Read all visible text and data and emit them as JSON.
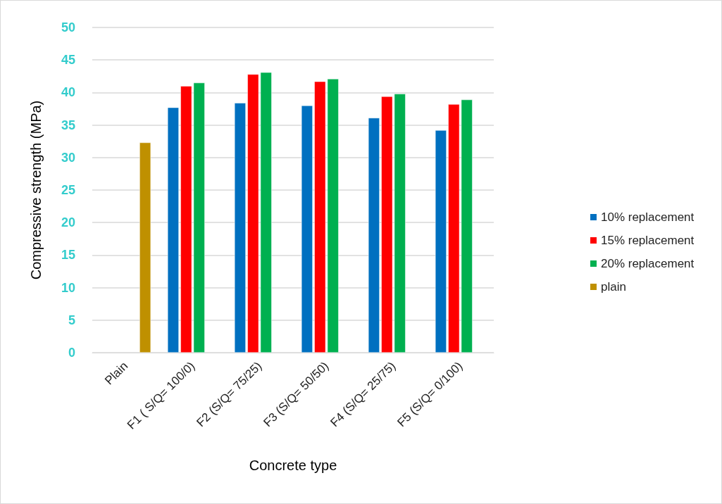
{
  "chart_data": {
    "type": "bar",
    "xlabel": "Concrete type",
    "ylabel": "Compressive strength (MPa)",
    "categories": [
      "Plain",
      "F1 ( S/Q= 100/0)",
      "F2 (S/Q= 75/25)",
      "F3 (S/Q= 50/50)",
      "F4 (S/Q= 25/75)",
      "F5 (S/Q= 0/100)"
    ],
    "series": [
      {
        "name": "10% replacement",
        "color": "#0070c0",
        "values": [
          null,
          37.7,
          38.4,
          38.0,
          36.1,
          34.2
        ]
      },
      {
        "name": "15% replacement",
        "color": "#ff0000",
        "values": [
          null,
          41.0,
          42.8,
          41.7,
          39.4,
          38.2
        ]
      },
      {
        "name": "20% replacement",
        "color": "#00b050",
        "values": [
          null,
          41.5,
          43.1,
          42.1,
          39.8,
          38.9
        ]
      },
      {
        "name": "plain",
        "color": "#bf9000",
        "values": [
          32.3,
          null,
          null,
          null,
          null,
          null
        ]
      }
    ],
    "ylim": [
      0,
      50
    ],
    "yticks": [
      0,
      5,
      10,
      15,
      20,
      25,
      30,
      35,
      40,
      45,
      50
    ],
    "grid": "y",
    "legend": "right"
  }
}
